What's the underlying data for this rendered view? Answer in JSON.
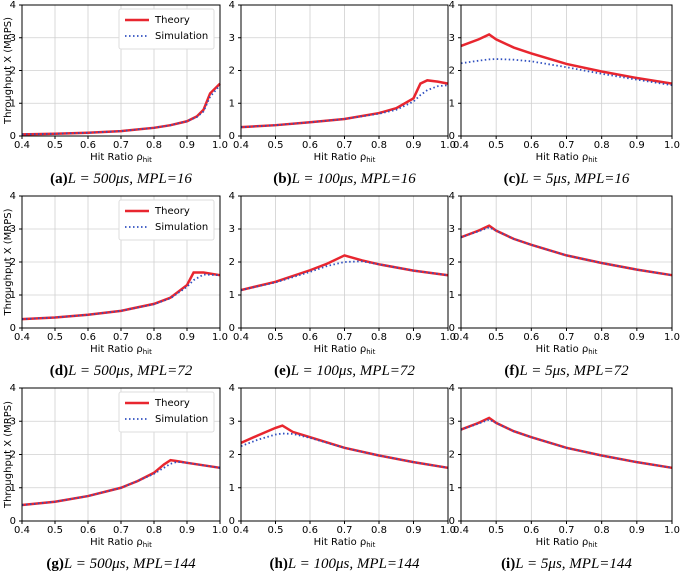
{
  "chart_data": [
    {
      "type": "line",
      "label": "(a)",
      "caption": "L = 500μs, MPL=16",
      "ylabel": "Throughput X (MRPS)",
      "xlabel": "Hit Ratio ρ",
      "xlabel_sub": "hit",
      "legend": "upper right",
      "grid": true,
      "x": [
        0.4,
        0.5,
        0.6,
        0.7,
        0.8,
        0.85,
        0.9,
        0.93,
        0.95,
        0.97,
        1.0
      ],
      "series": [
        {
          "name": "Theory",
          "color": "#e8262f",
          "values": [
            0.05,
            0.07,
            0.1,
            0.15,
            0.25,
            0.33,
            0.45,
            0.6,
            0.8,
            1.3,
            1.6
          ]
        },
        {
          "name": "Simulation",
          "color": "#3050c0",
          "values": [
            0.05,
            0.07,
            0.1,
            0.15,
            0.25,
            0.33,
            0.45,
            0.58,
            0.75,
            1.2,
            1.55
          ]
        }
      ],
      "xlim": [
        0.4,
        1.0
      ],
      "xticks": [
        0.4,
        0.5,
        0.6,
        0.7,
        0.8,
        0.9,
        {
          "value": 1,
          "label": "1.0"
        }
      ],
      "ylim": [
        0,
        4
      ],
      "yticks": [
        0,
        1,
        2,
        3,
        4
      ]
    },
    {
      "type": "line",
      "label": "(b)",
      "caption": "L = 100μs, MPL=16",
      "xlabel": "Hit Ratio ρ",
      "xlabel_sub": "hit",
      "grid": true,
      "x": [
        0.4,
        0.5,
        0.6,
        0.7,
        0.8,
        0.85,
        0.9,
        0.92,
        0.94,
        0.97,
        1.0
      ],
      "series": [
        {
          "color": "#e8262f",
          "values": [
            0.27,
            0.33,
            0.42,
            0.52,
            0.7,
            0.85,
            1.15,
            1.6,
            1.7,
            1.66,
            1.6
          ]
        },
        {
          "color": "#3050c0",
          "values": [
            0.27,
            0.33,
            0.42,
            0.52,
            0.68,
            0.8,
            1.05,
            1.25,
            1.4,
            1.52,
            1.55
          ]
        }
      ],
      "xlim": [
        0.4,
        1.0
      ],
      "xticks": [
        0.4,
        0.5,
        0.6,
        0.7,
        0.8,
        0.9,
        {
          "value": 1,
          "label": "1.0"
        }
      ],
      "ylim": [
        0,
        4
      ],
      "yticks": [
        0,
        1,
        2,
        3,
        4
      ]
    },
    {
      "type": "line",
      "label": "(c)",
      "caption": "L = 5μs, MPL=16",
      "xlabel": "Hit Ratio ρ",
      "xlabel_sub": "hit",
      "grid": true,
      "x": [
        0.4,
        0.45,
        0.48,
        0.5,
        0.55,
        0.6,
        0.7,
        0.8,
        0.9,
        1.0
      ],
      "series": [
        {
          "color": "#e8262f",
          "values": [
            2.75,
            2.95,
            3.1,
            2.95,
            2.7,
            2.52,
            2.2,
            1.97,
            1.77,
            1.6
          ]
        },
        {
          "color": "#3050c0",
          "values": [
            2.22,
            2.3,
            2.34,
            2.35,
            2.33,
            2.28,
            2.1,
            1.9,
            1.72,
            1.55
          ]
        }
      ],
      "xlim": [
        0.4,
        1.0
      ],
      "xticks": [
        0.4,
        0.5,
        0.6,
        0.7,
        0.8,
        0.9,
        {
          "value": 1,
          "label": "1.0"
        }
      ],
      "ylim": [
        0,
        4
      ],
      "yticks": [
        0,
        1,
        2,
        3,
        4
      ]
    },
    {
      "type": "line",
      "label": "(d)",
      "caption": "L = 500μs, MPL=72",
      "ylabel": "Throughput X (MRPS)",
      "xlabel": "Hit Ratio ρ",
      "xlabel_sub": "hit",
      "legend": "upper right",
      "grid": true,
      "x": [
        0.4,
        0.5,
        0.6,
        0.7,
        0.8,
        0.85,
        0.9,
        0.92,
        0.95,
        1.0
      ],
      "series": [
        {
          "name": "Theory",
          "color": "#e8262f",
          "values": [
            0.27,
            0.32,
            0.4,
            0.52,
            0.73,
            0.92,
            1.3,
            1.68,
            1.68,
            1.6
          ]
        },
        {
          "name": "Simulation",
          "color": "#3050c0",
          "values": [
            0.27,
            0.32,
            0.4,
            0.52,
            0.72,
            0.9,
            1.25,
            1.45,
            1.62,
            1.6
          ]
        }
      ],
      "xlim": [
        0.4,
        1.0
      ],
      "xticks": [
        0.4,
        0.5,
        0.6,
        0.7,
        0.8,
        0.9,
        {
          "value": 1,
          "label": "1.0"
        }
      ],
      "ylim": [
        0,
        4
      ],
      "yticks": [
        0,
        1,
        2,
        3,
        4
      ]
    },
    {
      "type": "line",
      "label": "(e)",
      "caption": "L = 100μs, MPL=72",
      "xlabel": "Hit Ratio ρ",
      "xlabel_sub": "hit",
      "grid": true,
      "x": [
        0.4,
        0.5,
        0.6,
        0.65,
        0.7,
        0.75,
        0.8,
        0.9,
        1.0
      ],
      "series": [
        {
          "color": "#e8262f",
          "values": [
            1.15,
            1.4,
            1.75,
            1.95,
            2.2,
            2.05,
            1.93,
            1.74,
            1.6
          ]
        },
        {
          "color": "#3050c0",
          "values": [
            1.15,
            1.38,
            1.7,
            1.88,
            2.0,
            2.02,
            1.93,
            1.74,
            1.6
          ]
        }
      ],
      "xlim": [
        0.4,
        1.0
      ],
      "xticks": [
        0.4,
        0.5,
        0.6,
        0.7,
        0.8,
        0.9,
        {
          "value": 1,
          "label": "1.0"
        }
      ],
      "ylim": [
        0,
        4
      ],
      "yticks": [
        0,
        1,
        2,
        3,
        4
      ]
    },
    {
      "type": "line",
      "label": "(f)",
      "caption": "L = 5μs, MPL=72",
      "xlabel": "Hit Ratio ρ",
      "xlabel_sub": "hit",
      "grid": true,
      "x": [
        0.4,
        0.45,
        0.48,
        0.5,
        0.55,
        0.6,
        0.7,
        0.8,
        0.9,
        1.0
      ],
      "series": [
        {
          "color": "#e8262f",
          "values": [
            2.75,
            2.95,
            3.1,
            2.95,
            2.7,
            2.52,
            2.2,
            1.97,
            1.77,
            1.6
          ]
        },
        {
          "color": "#3050c0",
          "values": [
            2.75,
            2.93,
            3.05,
            2.95,
            2.7,
            2.52,
            2.2,
            1.97,
            1.77,
            1.6
          ]
        }
      ],
      "xlim": [
        0.4,
        1.0
      ],
      "xticks": [
        0.4,
        0.5,
        0.6,
        0.7,
        0.8,
        0.9,
        {
          "value": 1,
          "label": "1.0"
        }
      ],
      "ylim": [
        0,
        4
      ],
      "yticks": [
        0,
        1,
        2,
        3,
        4
      ]
    },
    {
      "type": "line",
      "label": "(g)",
      "caption": "L = 500μs, MPL=144",
      "ylabel": "Throughput X (MRPS)",
      "xlabel": "Hit Ratio ρ",
      "xlabel_sub": "hit",
      "legend": "upper right",
      "grid": true,
      "x": [
        0.4,
        0.5,
        0.6,
        0.7,
        0.75,
        0.8,
        0.83,
        0.85,
        0.87,
        0.9,
        1.0
      ],
      "series": [
        {
          "name": "Theory",
          "color": "#e8262f",
          "values": [
            0.48,
            0.58,
            0.75,
            1.0,
            1.2,
            1.45,
            1.7,
            1.83,
            1.8,
            1.75,
            1.6
          ]
        },
        {
          "name": "Simulation",
          "color": "#3050c0",
          "values": [
            0.48,
            0.58,
            0.75,
            1.0,
            1.2,
            1.42,
            1.6,
            1.72,
            1.78,
            1.75,
            1.6
          ]
        }
      ],
      "xlim": [
        0.4,
        1.0
      ],
      "xticks": [
        0.4,
        0.5,
        0.6,
        0.7,
        0.8,
        0.9,
        {
          "value": 1,
          "label": "1.0"
        }
      ],
      "ylim": [
        0,
        4
      ],
      "yticks": [
        0,
        1,
        2,
        3,
        4
      ]
    },
    {
      "type": "line",
      "label": "(h)",
      "caption": "L = 100μs, MPL=144",
      "xlabel": "Hit Ratio ρ",
      "xlabel_sub": "hit",
      "grid": true,
      "x": [
        0.4,
        0.45,
        0.5,
        0.52,
        0.55,
        0.6,
        0.7,
        0.8,
        0.9,
        1.0
      ],
      "series": [
        {
          "color": "#e8262f",
          "values": [
            2.35,
            2.58,
            2.8,
            2.87,
            2.68,
            2.52,
            2.2,
            1.97,
            1.77,
            1.6
          ]
        },
        {
          "color": "#3050c0",
          "values": [
            2.25,
            2.45,
            2.6,
            2.63,
            2.62,
            2.5,
            2.2,
            1.97,
            1.77,
            1.6
          ]
        }
      ],
      "xlim": [
        0.4,
        1.0
      ],
      "xticks": [
        0.4,
        0.5,
        0.6,
        0.7,
        0.8,
        0.9,
        {
          "value": 1,
          "label": "1.0"
        }
      ],
      "ylim": [
        0,
        4
      ],
      "yticks": [
        0,
        1,
        2,
        3,
        4
      ]
    },
    {
      "type": "line",
      "label": "(i)",
      "caption": "L = 5μs, MPL=144",
      "xlabel": "Hit Ratio ρ",
      "xlabel_sub": "hit",
      "grid": true,
      "x": [
        0.4,
        0.45,
        0.48,
        0.5,
        0.55,
        0.6,
        0.7,
        0.8,
        0.9,
        1.0
      ],
      "series": [
        {
          "color": "#e8262f",
          "values": [
            2.75,
            2.95,
            3.1,
            2.95,
            2.7,
            2.52,
            2.2,
            1.97,
            1.77,
            1.6
          ]
        },
        {
          "color": "#3050c0",
          "values": [
            2.75,
            2.93,
            3.05,
            2.95,
            2.7,
            2.52,
            2.2,
            1.97,
            1.77,
            1.6
          ]
        }
      ],
      "xlim": [
        0.4,
        1.0
      ],
      "xticks": [
        0.4,
        0.5,
        0.6,
        0.7,
        0.8,
        0.9,
        {
          "value": 1,
          "label": "1.0"
        }
      ],
      "ylim": [
        0,
        4
      ],
      "yticks": [
        0,
        1,
        2,
        3,
        4
      ]
    }
  ]
}
